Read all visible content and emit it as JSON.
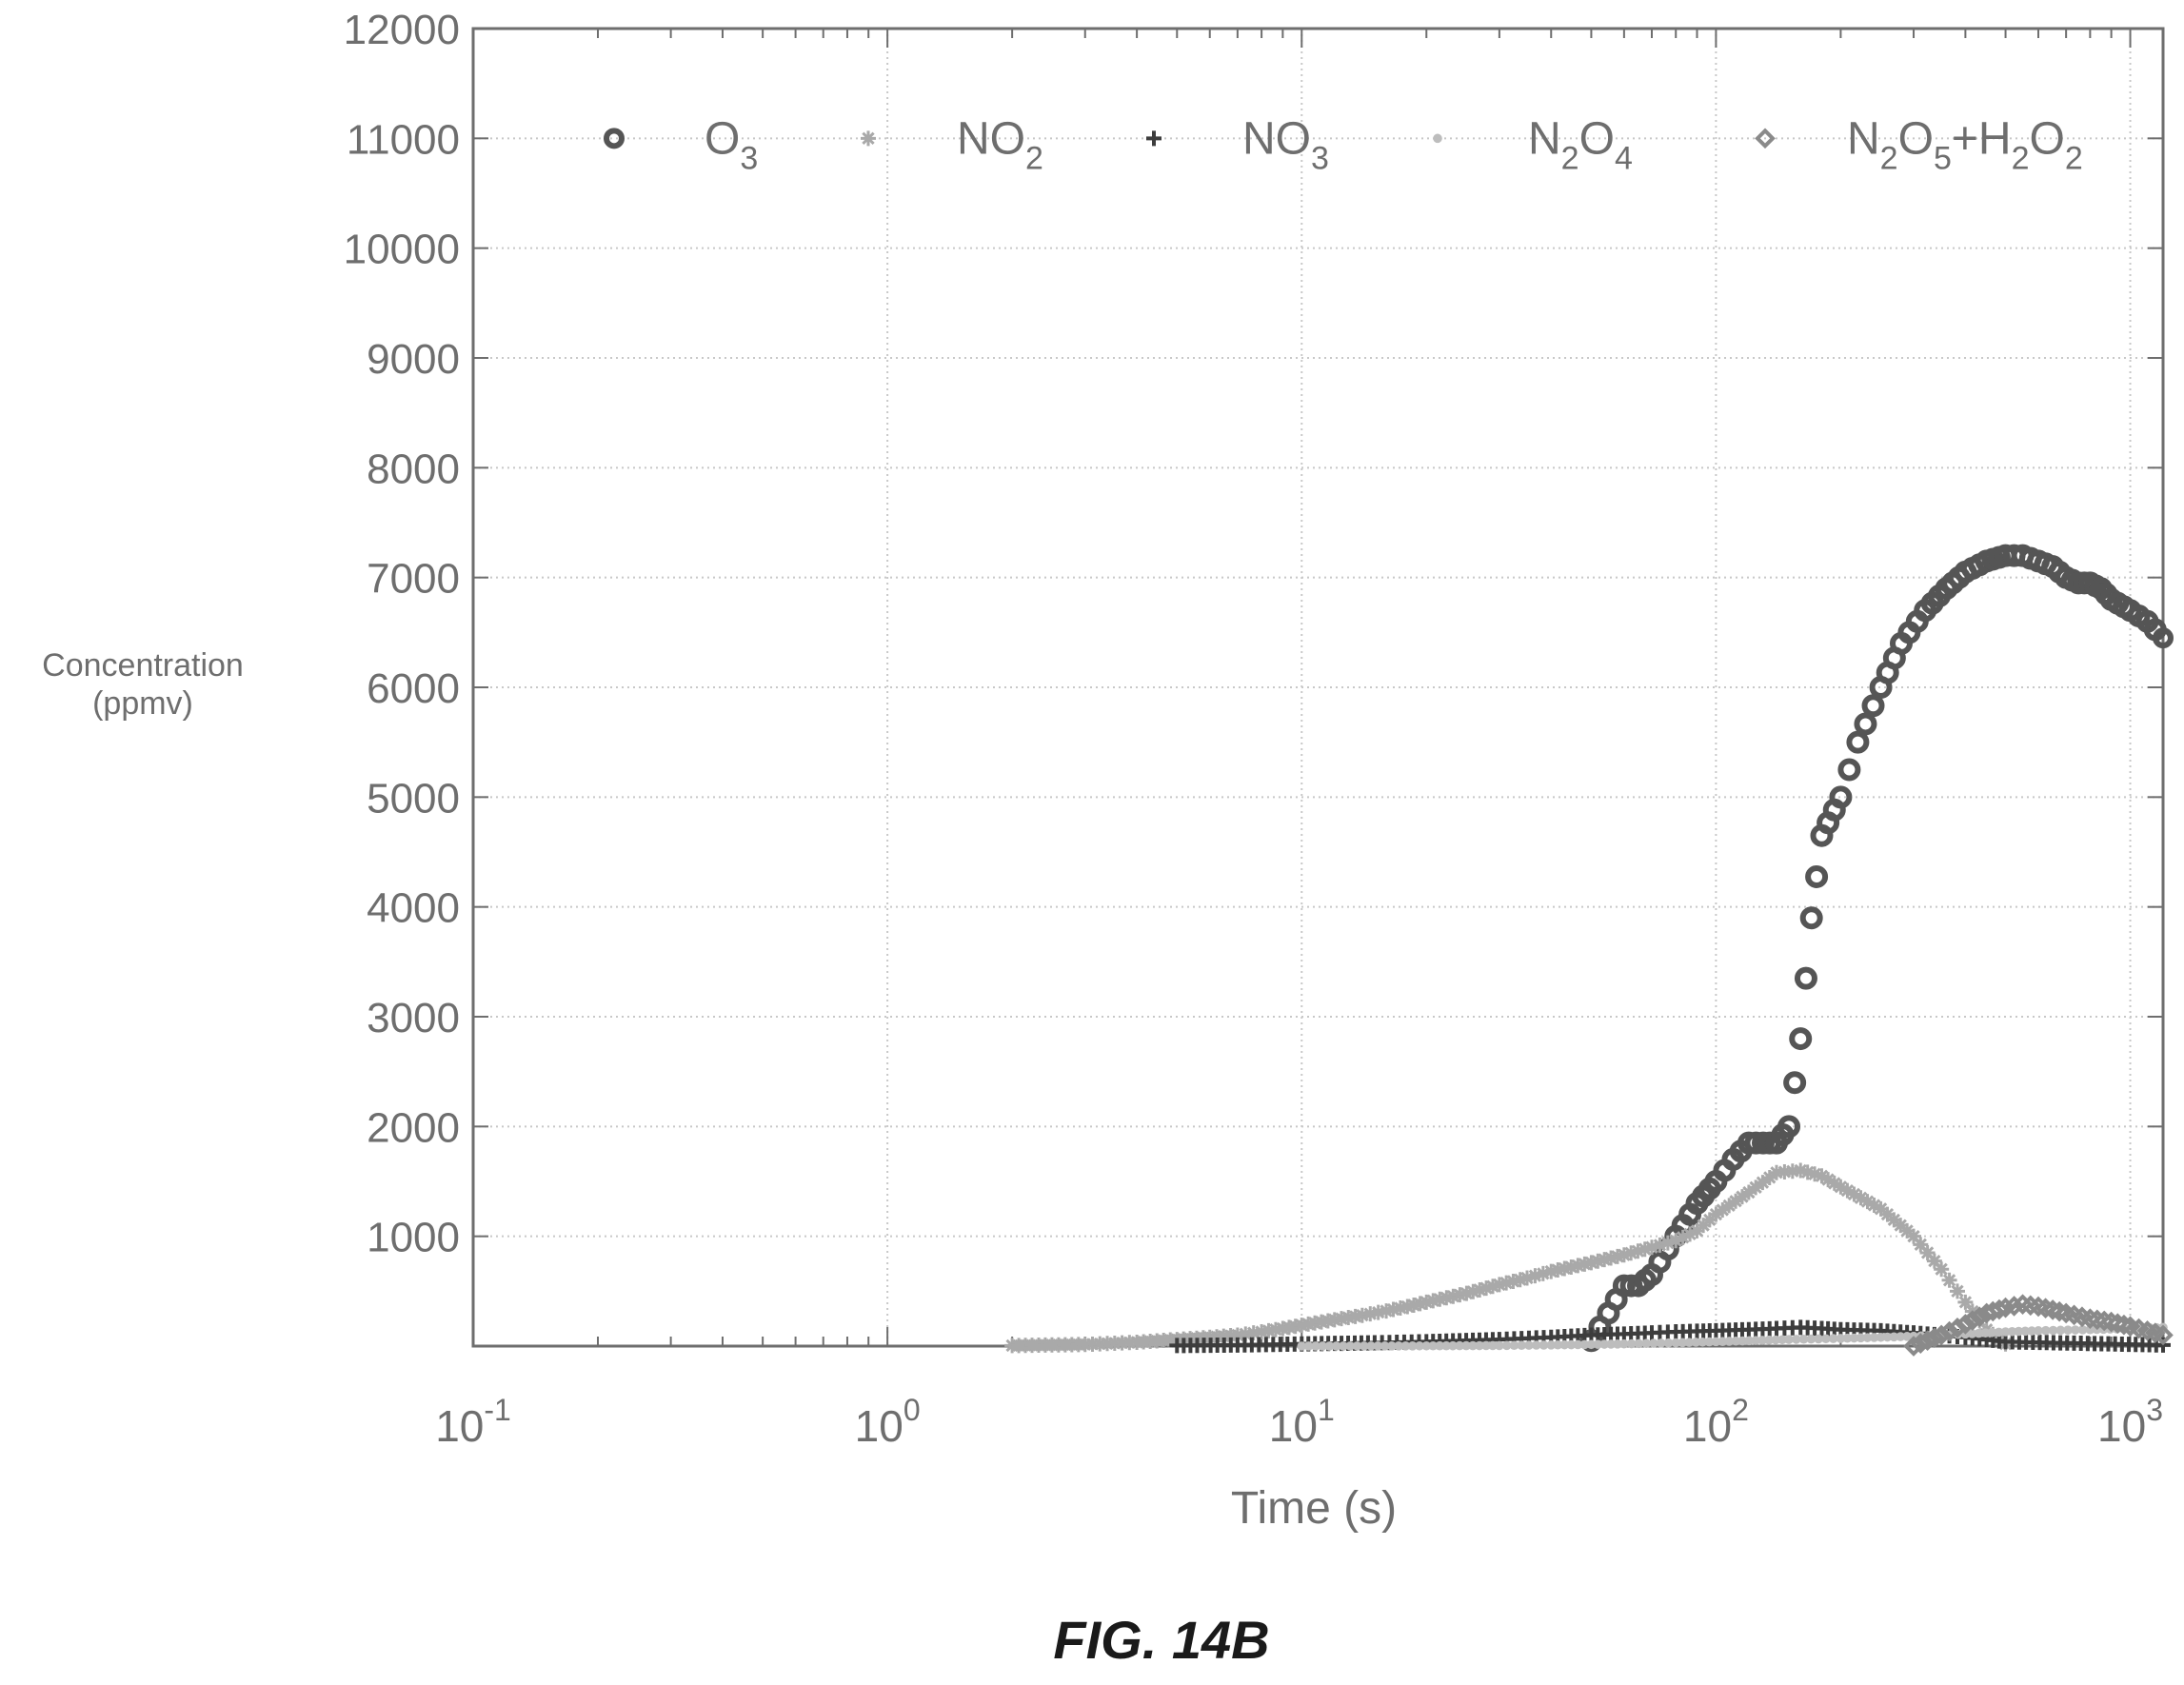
{
  "figure_label": "FIG. 14B",
  "colors": {
    "axis": "#6e6e6e",
    "grid": "#c8c8c8",
    "O3": "#555555",
    "NO2": "#a9a9a9",
    "NO3": "#3d3d3d",
    "N2O4": "#bdbdbd",
    "N2O5_H2O2": "#8a8a8a"
  },
  "chart_data": {
    "type": "scatter",
    "xscale": "log",
    "xlim": [
      0.1,
      1200
    ],
    "ylim": [
      0,
      12000
    ],
    "grid": true,
    "legend_position": "top",
    "xlabel": "Time (s)",
    "ylabel": "Concentration\n(ppmv)",
    "x_ticks": [
      {
        "value": 0.1,
        "base": "10",
        "exp": "-1"
      },
      {
        "value": 1,
        "base": "10",
        "exp": "0"
      },
      {
        "value": 10,
        "base": "10",
        "exp": "1"
      },
      {
        "value": 100,
        "base": "10",
        "exp": "2"
      },
      {
        "value": 1000,
        "base": "10",
        "exp": "3"
      }
    ],
    "y_ticks": [
      "1000",
      "2000",
      "3000",
      "4000",
      "5000",
      "6000",
      "7000",
      "8000",
      "9000",
      "10000",
      "11000",
      "12000"
    ],
    "series": [
      {
        "name": "O3",
        "legend": {
          "base": "O",
          "sub": "3"
        },
        "marker": "circle",
        "x": [
          50,
          55,
          60,
          65,
          70,
          80,
          90,
          100,
          110,
          120,
          130,
          140,
          150,
          160,
          170,
          180,
          200,
          220,
          250,
          280,
          320,
          360,
          400,
          450,
          500,
          550,
          600,
          650,
          700,
          750,
          800,
          850,
          900,
          1000,
          1100,
          1200
        ],
        "y": [
          50,
          300,
          550,
          550,
          650,
          1000,
          1300,
          1500,
          1700,
          1850,
          1850,
          1850,
          2000,
          2800,
          3900,
          4650,
          5000,
          5500,
          6000,
          6400,
          6700,
          6900,
          7050,
          7150,
          7200,
          7200,
          7150,
          7100,
          7000,
          6950,
          6950,
          6900,
          6800,
          6700,
          6600,
          6450
        ]
      },
      {
        "name": "NO2",
        "legend": {
          "base": "NO",
          "sub": "2"
        },
        "marker": "star",
        "x": [
          2,
          3,
          4,
          5,
          6,
          7,
          8,
          9,
          10,
          12,
          14,
          16,
          18,
          20,
          25,
          30,
          35,
          40,
          50,
          60,
          70,
          80,
          90,
          100,
          120,
          140,
          160,
          180,
          200,
          250,
          300,
          350,
          400,
          450,
          500
        ],
        "y": [
          5,
          15,
          35,
          60,
          80,
          100,
          130,
          160,
          190,
          240,
          280,
          320,
          360,
          400,
          480,
          560,
          620,
          680,
          760,
          830,
          900,
          960,
          1050,
          1200,
          1400,
          1580,
          1600,
          1550,
          1450,
          1250,
          1000,
          700,
          400,
          150,
          20
        ]
      },
      {
        "name": "NO3",
        "legend": {
          "base": "NO",
          "sub": "3"
        },
        "marker": "plus",
        "x": [
          5,
          7,
          10,
          15,
          20,
          30,
          40,
          50,
          60,
          70,
          80,
          90,
          100,
          120,
          140,
          160,
          180,
          200,
          250,
          300,
          350,
          400,
          450,
          500,
          1200
        ],
        "y": [
          5,
          10,
          20,
          30,
          40,
          60,
          80,
          100,
          110,
          120,
          130,
          135,
          140,
          150,
          160,
          170,
          160,
          150,
          140,
          120,
          100,
          80,
          60,
          40,
          10
        ]
      },
      {
        "name": "N2O4",
        "legend": {
          "base": "N",
          "sub": "2",
          "base2": "O",
          "sub2": "4"
        },
        "marker": "dot",
        "x": [
          10,
          20,
          30,
          40,
          50,
          60,
          80,
          100,
          150,
          200,
          250,
          300,
          400,
          500,
          600,
          800,
          1000,
          1200
        ],
        "y": [
          0,
          2,
          5,
          10,
          15,
          20,
          30,
          40,
          60,
          70,
          80,
          90,
          110,
          130,
          140,
          150,
          160,
          170
        ]
      },
      {
        "name": "N2O5+H2O2",
        "legend": {
          "base": "N",
          "sub": "2",
          "base2": "O",
          "sub2": "5",
          "plus": "+",
          "base3": "H",
          "sub3": "2",
          "base4": "O",
          "sub4": "2"
        },
        "marker": "diamond",
        "x": [
          300,
          350,
          400,
          450,
          500,
          550,
          600,
          650,
          700,
          800,
          900,
          1000,
          1100,
          1200
        ],
        "y": [
          0,
          100,
          200,
          300,
          350,
          380,
          360,
          330,
          300,
          250,
          220,
          180,
          140,
          100
        ]
      }
    ]
  }
}
